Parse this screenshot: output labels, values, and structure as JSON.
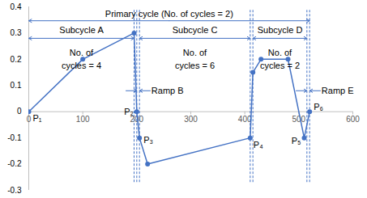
{
  "chart_data": {
    "type": "line",
    "series": [
      {
        "color": "#4472c4",
        "marker": "circle",
        "x": [
          0,
          100,
          195,
          200,
          205,
          220,
          410,
          415,
          430,
          480,
          510,
          520
        ],
        "values": [
          0,
          0.2,
          0.3,
          0,
          -0.1,
          -0.2,
          -0.1,
          0.15,
          0.2,
          0.2,
          -0.1,
          0
        ],
        "point_labels": [
          "P₁",
          null,
          null,
          "P₂",
          "P₃",
          null,
          "P₄",
          null,
          null,
          null,
          "P₅",
          "P₆"
        ]
      }
    ],
    "cycles": [
      {
        "label": "Primary cycle (No. of cycles = 2)",
        "start": 0,
        "end": 520,
        "level": "primary"
      },
      {
        "label": "Subcycle A",
        "note": "No. of\ncycles = 4",
        "start": 0,
        "end": 195,
        "level": "sub"
      },
      {
        "label": "Subcycle C",
        "note": "No. of\ncycles = 6",
        "start": 205,
        "end": 410,
        "level": "sub"
      },
      {
        "label": "Subcycle D",
        "note": "No. of\ncycles = 2",
        "start": 415,
        "end": 515,
        "level": "sub"
      }
    ],
    "ramps": [
      {
        "label": "Ramp B",
        "start": 200,
        "end": 205
      },
      {
        "label": "Ramp E",
        "start": 515,
        "end": 520
      }
    ],
    "xlim": [
      0,
      600
    ],
    "xticks": [
      0,
      100,
      200,
      300,
      400,
      500,
      600
    ],
    "ylim": [
      -0.3,
      0.4
    ],
    "yticks": [
      -0.3,
      -0.2,
      -0.1,
      0,
      0.1,
      0.2,
      0.3,
      0.4
    ],
    "grid": false
  }
}
